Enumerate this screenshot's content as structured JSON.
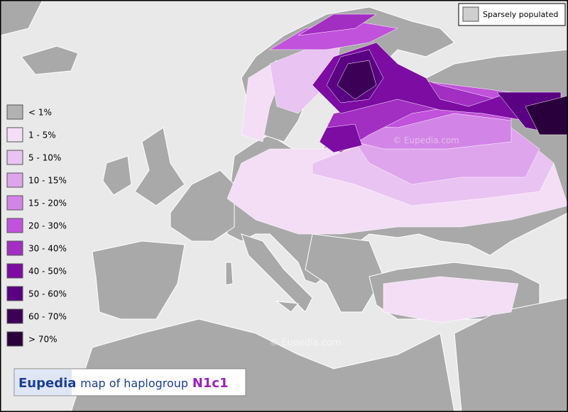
{
  "legend": {
    "items": [
      {
        "label": "< 1%",
        "color": "#b2b2b2"
      },
      {
        "label": "1 - 5%",
        "color": "#f3def6"
      },
      {
        "label": "5 - 10%",
        "color": "#e9c3f1"
      },
      {
        "label": "10 - 15%",
        "color": "#dea5ec"
      },
      {
        "label": "15 - 20%",
        "color": "#d285e6"
      },
      {
        "label": "20 - 30%",
        "color": "#c152dc"
      },
      {
        "label": "30 - 40%",
        "color": "#a22ec2"
      },
      {
        "label": "40 - 50%",
        "color": "#7c0ca2"
      },
      {
        "label": "50 - 60%",
        "color": "#5a0082"
      },
      {
        "label": "60 - 70%",
        "color": "#3c0056"
      },
      {
        "label": "> 70%",
        "color": "#2a003c"
      }
    ]
  },
  "key": {
    "label": "Sparsely populated",
    "color": "#cfcfcf"
  },
  "caption": {
    "brand": "Eupedia",
    "text": "map of haplogroup",
    "haplogroup": "N1c1"
  },
  "watermarks": [
    "© Eupedia.com",
    "© Eupedia.com"
  ]
}
